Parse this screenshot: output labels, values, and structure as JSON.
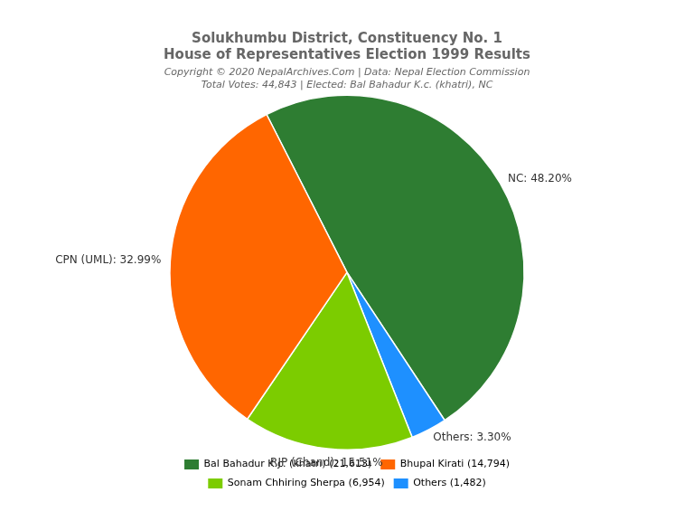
{
  "chart_data": {
    "type": "pie",
    "title": [
      "Solukhumbu District, Constituency No. 1",
      "House of Representatives Election 1999 Results"
    ],
    "subtitle": [
      "Copyright © 2020 NepalArchives.Com | Data: Nepal Election Commission",
      "Total Votes: 44,843 | Elected: Bal Bahadur K.c. (khatri), NC"
    ],
    "categories": [
      "NC",
      "Others",
      "RJP (Chand)",
      "CPN (UML)"
    ],
    "values": [
      48.2,
      3.3,
      15.51,
      32.99
    ],
    "value_labels": [
      "NC: 48.20%",
      "Others: 3.30%",
      "RJP (Chand): 15.51%",
      "CPN (UML): 32.99%"
    ],
    "colors": [
      "#2E7D32",
      "#1E90FF",
      "#7CCC00",
      "#FF6600"
    ],
    "data_labels": true,
    "legend": "bottom",
    "legend_entries": [
      {
        "text": "Bal Bahadur K.c. (khatri) (21,613)",
        "color": "#2E7D32"
      },
      {
        "text": "Bhupal Kirati (14,794)",
        "color": "#FF6600"
      },
      {
        "text": "Sonam Chhiring Sherpa (6,954)",
        "color": "#7CCC00"
      },
      {
        "text": "Others (1,482)",
        "color": "#1E90FF"
      }
    ]
  }
}
